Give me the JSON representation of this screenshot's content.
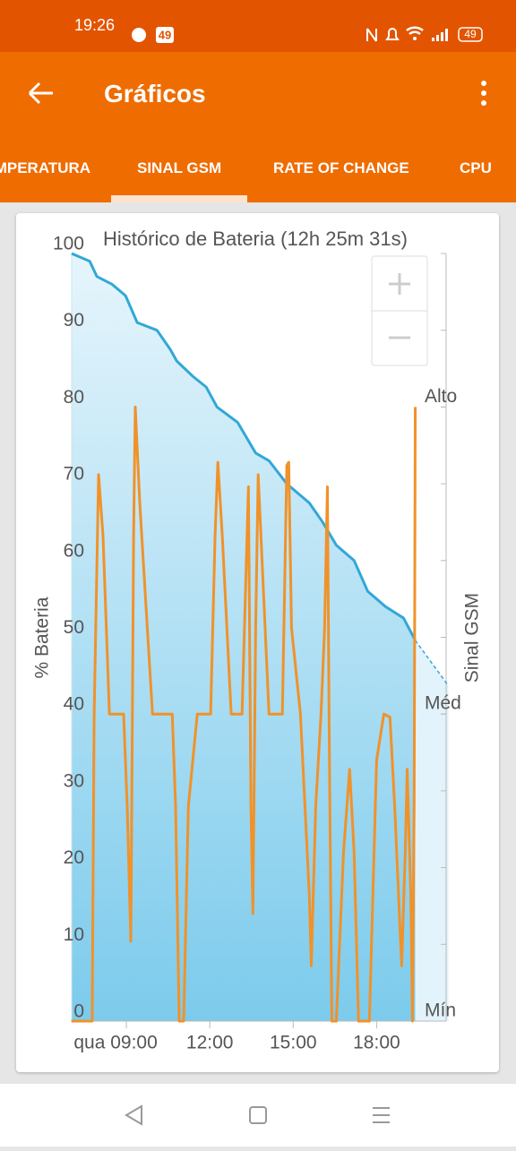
{
  "status_bar": {
    "time": "19:26",
    "notification_badge": "49",
    "battery": "49"
  },
  "app_bar": {
    "title": "Gráficos"
  },
  "tabs": [
    "TEMPERATURA",
    "SINAL GSM",
    "RATE OF CHANGE",
    "CPU"
  ],
  "selected_tab": 1,
  "chart_data": {
    "type": "line",
    "title": "Histórico de Bateria (12h 25m 31s)",
    "ylabel": "% Bateria",
    "y2label": "Sinal GSM",
    "xlim": [
      7,
      20.5
    ],
    "xticks": [
      {
        "value": 9,
        "label": "qua 09:00"
      },
      {
        "value": 12,
        "label": "12:00"
      },
      {
        "value": 15,
        "label": "15:00"
      },
      {
        "value": 18,
        "label": "18:00"
      }
    ],
    "ylim": [
      0,
      100
    ],
    "yticks": [
      0,
      10,
      20,
      30,
      40,
      50,
      60,
      70,
      80,
      90,
      100
    ],
    "y2lim": [
      0,
      2.5
    ],
    "y2ticks": [
      {
        "value": 0,
        "label": "Mín"
      },
      {
        "value": 1,
        "label": "Méd"
      },
      {
        "value": 2,
        "label": "Alto"
      }
    ],
    "series": [
      {
        "color": "#31a8d6",
        "fill": true,
        "x": [
          7.03,
          7.68,
          7.94,
          8.48,
          8.97,
          9.39,
          10.1,
          10.58,
          10.81,
          11.39,
          11.87,
          12.26,
          13,
          13.65,
          14.13,
          14.77,
          15.58,
          16.06,
          16.55,
          17.19,
          17.68,
          18.32,
          18.97,
          19.39
        ],
        "values": [
          100,
          99,
          97,
          96,
          94.5,
          91,
          90,
          87.5,
          86,
          84,
          82.6,
          80,
          78,
          74,
          73,
          70,
          67.5,
          65,
          62,
          60,
          56,
          54,
          52.5,
          49.6
        ]
      },
      {
        "color": "#31a8d6",
        "fill": true,
        "dashed": true,
        "x": [
          19.39,
          20.58
        ],
        "values": [
          49.6,
          43.7
        ]
      },
      {
        "color": "#f0922a",
        "axis": "y2",
        "x": [
          7.03,
          7.77,
          7.84,
          8.0,
          8.16,
          8.39,
          8.9,
          9.03,
          9.16,
          9.26,
          9.32,
          9.48,
          9.94,
          10.65,
          10.77,
          10.9,
          11.06,
          11.23,
          11.55,
          12.03,
          12.19,
          12.29,
          12.45,
          12.77,
          13.16,
          13.39,
          13.48,
          13.55,
          13.65,
          13.74,
          13.87,
          14.13,
          14.61,
          14.77,
          14.84,
          14.94,
          15.26,
          15.58,
          15.65,
          15.81,
          16.0,
          16.13,
          16.23,
          16.29,
          16.39,
          16.55,
          16.81,
          17.03,
          17.19,
          17.35,
          17.74,
          18.0,
          18.26,
          18.48,
          18.65,
          18.9,
          19.03,
          19.1,
          19.23,
          19.29,
          19.35,
          19.39
        ],
        "values": [
          0,
          0,
          0.99,
          1.78,
          1.58,
          1,
          1,
          0.7,
          0.26,
          1.58,
          2,
          1.69,
          1,
          1,
          0.7,
          0,
          0,
          0.7,
          1,
          1,
          1.58,
          1.82,
          1.58,
          1,
          1,
          1.74,
          0.7,
          0.35,
          1.28,
          1.78,
          1.52,
          1,
          1,
          1.81,
          1.82,
          1.28,
          1,
          0.41,
          0.18,
          0.7,
          1,
          1.28,
          1.74,
          0.99,
          0,
          0,
          0.55,
          0.82,
          0.55,
          0,
          0,
          0.85,
          1,
          0.99,
          0.7,
          0.18,
          0.55,
          0.82,
          0.41,
          0,
          0.7,
          2
        ]
      }
    ]
  }
}
